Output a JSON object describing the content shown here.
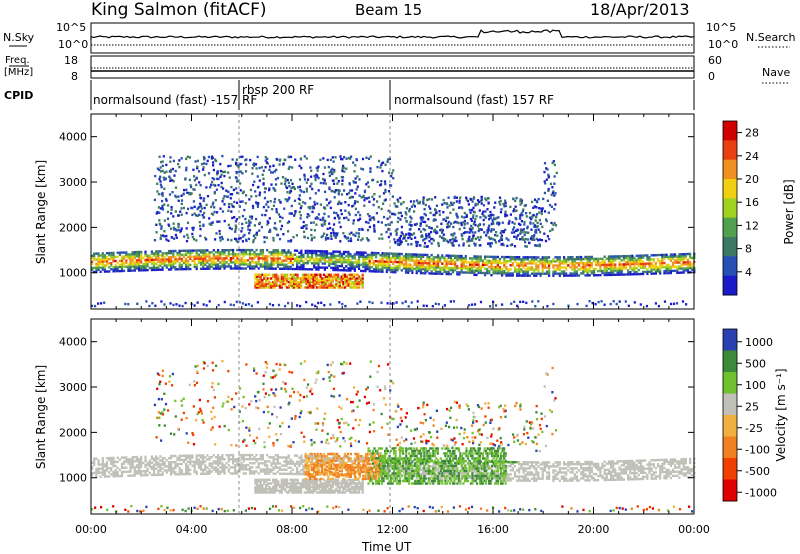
{
  "header": {
    "station": "King Salmon (fitACF)",
    "beam": "Beam 15",
    "date": "18/Apr/2013"
  },
  "params": {
    "nsky_label": "N.Sky",
    "nsearch_label": "N.Search",
    "nsky_ticks": [
      "10^5",
      "10^0"
    ],
    "nsearch_ticks": [
      "10^5",
      "10^0"
    ],
    "freq_label_top": "Freq.",
    "freq_label_bottom": "[MHz]",
    "freq_ticks": [
      "18",
      "8"
    ],
    "nave_label": "Nave",
    "nave_ticks": [
      "60",
      "0"
    ],
    "cpid_label": "CPID",
    "cpid_modes": [
      {
        "label": "normalsound (fast) -157 RF",
        "start_hour": 0,
        "end_hour": 6
      },
      {
        "label": "rbsp 200 RF",
        "start_hour": 6,
        "end_hour": 12
      },
      {
        "label": "normalsound (fast) 157 RF",
        "start_hour": 12,
        "end_hour": 24
      }
    ]
  },
  "x_axis": {
    "label": "Time UT",
    "ticks": [
      "00:00",
      "04:00",
      "08:00",
      "12:00",
      "16:00",
      "20:00",
      "00:00"
    ],
    "range_hours": [
      0,
      24
    ]
  },
  "panels": {
    "power": {
      "ylabel": "Slant Range [km]",
      "yticks": [
        "1000",
        "2000",
        "3000",
        "4000"
      ],
      "colorbar_label": "Power [dB]",
      "colorbar_ticks": [
        "28",
        "24",
        "20",
        "16",
        "12",
        "8",
        "4"
      ]
    },
    "velocity": {
      "ylabel": "Slant Range [km]",
      "yticks": [
        "1000",
        "2000",
        "3000",
        "4000"
      ],
      "colorbar_label": "Velocity [m s⁻¹]",
      "colorbar_ticks": [
        "1000",
        "500",
        "100",
        "25",
        "-25",
        "-100",
        "-500",
        "-1000"
      ]
    }
  },
  "chart_data": [
    {
      "type": "heatmap",
      "variable": "Power",
      "units": "dB",
      "x_unit": "hours UT",
      "y_unit": "km",
      "xlim": [
        0,
        24
      ],
      "ylim": [
        200,
        4500
      ],
      "color_scale": {
        "min": 0,
        "max": 30,
        "colors": [
          "#1a1ac8",
          "#2850b4",
          "#3c7864",
          "#50a050",
          "#a0d020",
          "#f0d010",
          "#f09020",
          "#e84010",
          "#d00000"
        ]
      },
      "features": [
        {
          "name": "ground scatter band",
          "x_range": [
            0,
            24
          ],
          "range_km": [
            1150,
            1450
          ],
          "peak_power_db": 28
        },
        {
          "name": "near-range band",
          "x_range": [
            6.5,
            10.5
          ],
          "range_km": [
            700,
            1000
          ],
          "peak_power_db": 24
        },
        {
          "name": "scattered echoes",
          "x_range": [
            3,
            18
          ],
          "range_km": [
            1800,
            3500
          ],
          "peak_power_db": 12
        }
      ]
    },
    {
      "type": "heatmap",
      "variable": "Velocity",
      "units": "m s^-1",
      "x_unit": "hours UT",
      "y_unit": "km",
      "xlim": [
        0,
        24
      ],
      "ylim": [
        200,
        4500
      ],
      "color_scale": {
        "levels": [
          -1000,
          -500,
          -100,
          -25,
          25,
          100,
          500,
          1000
        ],
        "colors": [
          "#e00000",
          "#f04000",
          "#f08020",
          "#f0b040",
          "#c0c0b8",
          "#70c030",
          "#3a8a3a",
          "#2840b0"
        ]
      },
      "features": [
        {
          "name": "ground scatter (near zero)",
          "x_range": [
            0,
            24
          ],
          "range_km": [
            1100,
            1500
          ],
          "velocity": 0
        },
        {
          "name": "positive flow",
          "x_range": [
            11,
            17
          ],
          "range_km": [
            900,
            1800
          ],
          "velocity": 300
        },
        {
          "name": "negative flow",
          "x_range": [
            8.5,
            11.5
          ],
          "range_km": [
            1000,
            1500
          ],
          "velocity": -300
        }
      ]
    }
  ]
}
